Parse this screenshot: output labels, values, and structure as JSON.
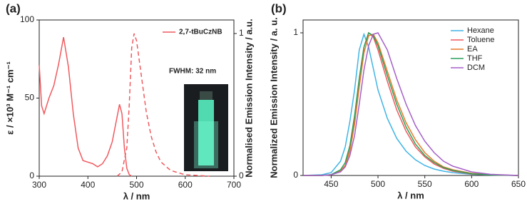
{
  "chart_data": [
    {
      "type": "line",
      "panel_label": "(a)",
      "x_label": "λ / nm",
      "y_label": "ε / ×10³ M⁻¹ cm⁻¹",
      "y2_label": "Normalised Emission Intensity / a.u.",
      "annotation": "FWHM: 32 nm",
      "xlim": [
        300,
        700
      ],
      "xticks": [
        300,
        400,
        500,
        600,
        700
      ],
      "ylim": [
        0,
        100
      ],
      "yticks": [
        0,
        50,
        100
      ],
      "y2lim": [
        0,
        1.095
      ],
      "y2ticks": [
        0,
        1
      ],
      "series": [
        {
          "name": "2,7-tBuCzNB",
          "color": "#f0595e",
          "style": "solid",
          "x": [
            300,
            305,
            310,
            320,
            330,
            340,
            350,
            360,
            370,
            380,
            390,
            400,
            410,
            420,
            430,
            440,
            450,
            460,
            465,
            470,
            475,
            480,
            485,
            490
          ],
          "values": [
            71,
            45,
            40,
            50,
            58,
            72,
            89,
            70,
            40,
            18,
            10,
            9,
            8,
            6,
            8,
            13,
            22,
            38,
            46,
            40,
            18,
            5,
            1,
            0
          ]
        },
        {
          "color": "#f0595e",
          "style": "dashed",
          "axis": "y2",
          "x": [
            460,
            470,
            480,
            485,
            490,
            495,
            500,
            510,
            520,
            530,
            540,
            550,
            570,
            600,
            650
          ],
          "values": [
            0,
            0.03,
            0.2,
            0.5,
            0.9,
            1.0,
            0.95,
            0.7,
            0.45,
            0.28,
            0.17,
            0.1,
            0.04,
            0.01,
            0
          ]
        }
      ]
    },
    {
      "type": "line",
      "panel_label": "(b)",
      "x_label": "λ / nm",
      "y_label": "Normalized Emission Intensity / a. u.",
      "xlim": [
        420,
        650
      ],
      "xticks": [
        450,
        500,
        550,
        600,
        650
      ],
      "ylim": [
        0,
        1.09
      ],
      "yticks": [
        0,
        1
      ],
      "x": [
        420,
        440,
        450,
        460,
        465,
        470,
        475,
        480,
        485,
        490,
        495,
        500,
        510,
        520,
        530,
        540,
        550,
        560,
        570,
        580,
        600,
        620,
        650
      ],
      "series": [
        {
          "name": "Hexane",
          "color": "#3fb4e6",
          "style": "solid",
          "values": [
            0,
            0.005,
            0.02,
            0.1,
            0.2,
            0.38,
            0.6,
            0.88,
            0.99,
            0.9,
            0.75,
            0.6,
            0.4,
            0.26,
            0.17,
            0.11,
            0.07,
            0.045,
            0.03,
            0.02,
            0.008,
            0.003,
            0
          ]
        },
        {
          "name": "Toluene",
          "color": "#f0595e",
          "style": "solid",
          "values": [
            0,
            0,
            0.005,
            0.03,
            0.07,
            0.18,
            0.4,
            0.68,
            0.9,
            1.0,
            0.97,
            0.88,
            0.66,
            0.46,
            0.31,
            0.2,
            0.13,
            0.08,
            0.05,
            0.03,
            0.01,
            0.004,
            0
          ]
        },
        {
          "name": "EA",
          "color": "#e8782a",
          "style": "solid",
          "values": [
            0,
            0,
            0.005,
            0.03,
            0.07,
            0.17,
            0.36,
            0.62,
            0.86,
            0.98,
            0.99,
            0.93,
            0.73,
            0.53,
            0.37,
            0.25,
            0.16,
            0.1,
            0.06,
            0.04,
            0.015,
            0.005,
            0
          ]
        },
        {
          "name": "THF",
          "color": "#2aa05a",
          "style": "solid",
          "values": [
            0,
            0,
            0.006,
            0.04,
            0.09,
            0.21,
            0.42,
            0.68,
            0.9,
            1.0,
            0.98,
            0.91,
            0.7,
            0.5,
            0.34,
            0.22,
            0.14,
            0.09,
            0.055,
            0.035,
            0.012,
            0.004,
            0
          ]
        },
        {
          "name": "DCM",
          "color": "#a55fc8",
          "style": "solid",
          "values": [
            0,
            0,
            0.005,
            0.025,
            0.06,
            0.14,
            0.28,
            0.5,
            0.74,
            0.91,
            0.99,
            1.0,
            0.88,
            0.68,
            0.5,
            0.35,
            0.24,
            0.16,
            0.1,
            0.065,
            0.025,
            0.008,
            0
          ]
        }
      ]
    }
  ]
}
